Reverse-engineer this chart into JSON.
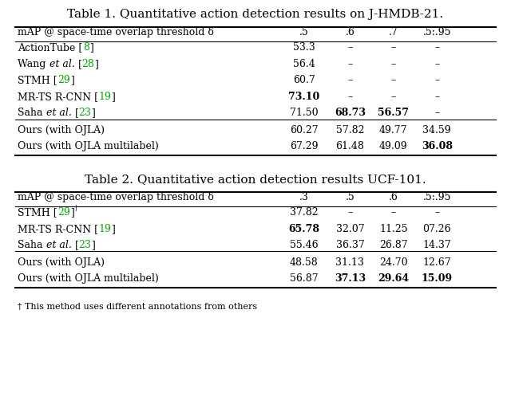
{
  "title1": "Table 1. Quantitative action detection results on J-HMDB-21.",
  "title2": "Table 2. Quantitative action detection results UCF-101.",
  "footnote": "† This method uses different annotations from others",
  "table1": {
    "header": [
      "mAP @ space-time overlap threshold δ",
      ".5",
      ".6",
      ".7",
      ".5:.95"
    ],
    "rows": [
      {
        "method_parts": [
          {
            "text": "ActionTube [",
            "style": "normal",
            "color": "black"
          },
          {
            "text": "8",
            "style": "normal",
            "color": "#00aa00"
          },
          {
            "text": "]",
            "style": "normal",
            "color": "black"
          }
        ],
        "values": [
          "53.3",
          "–",
          "–",
          "–"
        ],
        "bold": [
          false,
          false,
          false,
          false
        ],
        "group": 0
      },
      {
        "method_parts": [
          {
            "text": "Wang ",
            "style": "normal",
            "color": "black"
          },
          {
            "text": "et al.",
            "style": "italic",
            "color": "black"
          },
          {
            "text": " [",
            "style": "normal",
            "color": "black"
          },
          {
            "text": "28",
            "style": "normal",
            "color": "#00aa00"
          },
          {
            "text": "]",
            "style": "normal",
            "color": "black"
          }
        ],
        "values": [
          "56.4",
          "–",
          "–",
          "–"
        ],
        "bold": [
          false,
          false,
          false,
          false
        ],
        "group": 0
      },
      {
        "method_parts": [
          {
            "text": "STMH [",
            "style": "normal",
            "color": "black"
          },
          {
            "text": "29",
            "style": "normal",
            "color": "#00aa00"
          },
          {
            "text": "]",
            "style": "normal",
            "color": "black"
          }
        ],
        "values": [
          "60.7",
          "–",
          "–",
          "–"
        ],
        "bold": [
          false,
          false,
          false,
          false
        ],
        "group": 0
      },
      {
        "method_parts": [
          {
            "text": "MR-TS R-CNN [",
            "style": "normal",
            "color": "black"
          },
          {
            "text": "19",
            "style": "normal",
            "color": "#00aa00"
          },
          {
            "text": "]",
            "style": "normal",
            "color": "black"
          }
        ],
        "values": [
          "73.10",
          "–",
          "–",
          "–"
        ],
        "bold": [
          true,
          false,
          false,
          false
        ],
        "group": 0
      },
      {
        "method_parts": [
          {
            "text": "Saha ",
            "style": "normal",
            "color": "black"
          },
          {
            "text": "et al.",
            "style": "italic",
            "color": "black"
          },
          {
            "text": " [",
            "style": "normal",
            "color": "black"
          },
          {
            "text": "23",
            "style": "normal",
            "color": "#00aa00"
          },
          {
            "text": "]",
            "style": "normal",
            "color": "black"
          }
        ],
        "values": [
          "71.50",
          "68.73",
          "56.57",
          "–"
        ],
        "bold": [
          false,
          true,
          true,
          false
        ],
        "group": 0
      },
      {
        "method_parts": [
          {
            "text": "Ours (with OJLA)",
            "style": "normal",
            "color": "black"
          }
        ],
        "values": [
          "60.27",
          "57.82",
          "49.77",
          "34.59"
        ],
        "bold": [
          false,
          false,
          false,
          false
        ],
        "group": 1
      },
      {
        "method_parts": [
          {
            "text": "Ours (with OJLA multilabel)",
            "style": "normal",
            "color": "black"
          }
        ],
        "values": [
          "67.29",
          "61.48",
          "49.09",
          "36.08"
        ],
        "bold": [
          false,
          false,
          false,
          true
        ],
        "group": 1
      }
    ]
  },
  "table2": {
    "header": [
      "mAP @ space-time overlap threshold δ",
      ".3",
      ".5",
      ".6",
      ".5:.95"
    ],
    "rows": [
      {
        "method_parts": [
          {
            "text": "STMH [",
            "style": "normal",
            "color": "black"
          },
          {
            "text": "29",
            "style": "normal",
            "color": "#00aa00"
          },
          {
            "text": "]",
            "style": "normal",
            "color": "black"
          },
          {
            "text": "†",
            "style": "superscript",
            "color": "black"
          }
        ],
        "values": [
          "37.82",
          "–",
          "–",
          "–"
        ],
        "bold": [
          false,
          false,
          false,
          false
        ],
        "group": 0
      },
      {
        "method_parts": [
          {
            "text": "MR-TS R-CNN [",
            "style": "normal",
            "color": "black"
          },
          {
            "text": "19",
            "style": "normal",
            "color": "#00aa00"
          },
          {
            "text": "]",
            "style": "normal",
            "color": "black"
          }
        ],
        "values": [
          "65.78",
          "32.07",
          "11.25",
          "07.26"
        ],
        "bold": [
          true,
          false,
          false,
          false
        ],
        "group": 0
      },
      {
        "method_parts": [
          {
            "text": "Saha ",
            "style": "normal",
            "color": "black"
          },
          {
            "text": "et al.",
            "style": "italic",
            "color": "black"
          },
          {
            "text": " [",
            "style": "normal",
            "color": "black"
          },
          {
            "text": "23",
            "style": "normal",
            "color": "#00aa00"
          },
          {
            "text": "]",
            "style": "normal",
            "color": "black"
          }
        ],
        "values": [
          "55.46",
          "36.37",
          "26.87",
          "14.37"
        ],
        "bold": [
          false,
          false,
          false,
          false
        ],
        "group": 0
      },
      {
        "method_parts": [
          {
            "text": "Ours (with OJLA)",
            "style": "normal",
            "color": "black"
          }
        ],
        "values": [
          "48.58",
          "31.13",
          "24.70",
          "12.67"
        ],
        "bold": [
          false,
          false,
          false,
          false
        ],
        "group": 1
      },
      {
        "method_parts": [
          {
            "text": "Ours (with OJLA multilabel)",
            "style": "normal",
            "color": "black"
          }
        ],
        "values": [
          "56.87",
          "37.13",
          "29.64",
          "15.09"
        ],
        "bold": [
          false,
          true,
          true,
          true
        ],
        "group": 1
      }
    ]
  },
  "bg_color": "#ffffff",
  "green_color": "#00aa00",
  "title_fontsize": 11.0,
  "header_fontsize": 9.0,
  "body_fontsize": 9.0,
  "footnote_fontsize": 8.0
}
